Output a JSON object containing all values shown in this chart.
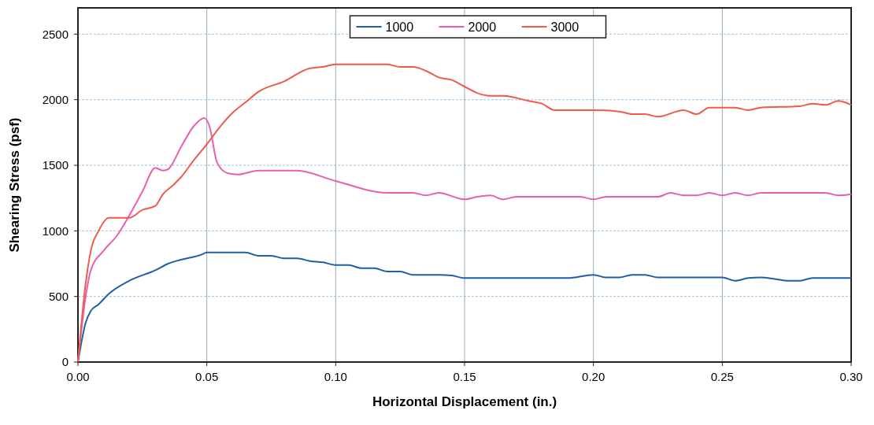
{
  "chart_data": {
    "type": "line",
    "xlabel": "Horizontal Displacement (in.)",
    "ylabel": "Shearing Stress (psf)",
    "xlim": [
      0,
      0.3
    ],
    "xticks": [
      {
        "value": 0,
        "label": "0.00"
      },
      {
        "value": 0.05,
        "label": "0.05"
      },
      {
        "value": 0.1,
        "label": "0.10"
      },
      {
        "value": 0.15,
        "label": "0.15"
      },
      {
        "value": 0.2,
        "label": "0.20"
      },
      {
        "value": 0.25,
        "label": "0.25"
      },
      {
        "value": 0.3,
        "label": "0.30"
      }
    ],
    "ylim": [
      0,
      2700
    ],
    "yticks": [
      0,
      500,
      1000,
      1500,
      2000,
      2500
    ],
    "grid": true,
    "legend": "top",
    "marker": "none",
    "line_style": "solid",
    "series": [
      {
        "name": "1000",
        "color": "#1f5fa8",
        "x": [
          0,
          0.003,
          0.005,
          0.008,
          0.012,
          0.02,
          0.03,
          0.035,
          0.04,
          0.048,
          0.05,
          0.06,
          0.065,
          0.07,
          0.075,
          0.08,
          0.085,
          0.09,
          0.095,
          0.1,
          0.105,
          0.11,
          0.115,
          0.12,
          0.125,
          0.13,
          0.14,
          0.145,
          0.15,
          0.19,
          0.2,
          0.205,
          0.21,
          0.215,
          0.22,
          0.225,
          0.25,
          0.255,
          0.26,
          0.265,
          0.27,
          0.275,
          0.28,
          0.285,
          0.3
        ],
        "values": [
          0,
          300,
          390,
          440,
          520,
          620,
          700,
          750,
          780,
          820,
          835,
          835,
          835,
          810,
          810,
          790,
          790,
          770,
          760,
          740,
          740,
          715,
          715,
          690,
          690,
          665,
          665,
          660,
          640,
          640,
          665,
          645,
          645,
          665,
          665,
          645,
          645,
          620,
          640,
          645,
          635,
          620,
          620,
          640,
          640
        ]
      },
      {
        "name": "2000",
        "color": "#e85fb0",
        "x": [
          0,
          0.003,
          0.005,
          0.01,
          0.015,
          0.02,
          0.025,
          0.03,
          0.033,
          0.035,
          0.04,
          0.045,
          0.049,
          0.051,
          0.054,
          0.058,
          0.062,
          0.07,
          0.08,
          0.085,
          0.1,
          0.12,
          0.13,
          0.135,
          0.14,
          0.15,
          0.155,
          0.16,
          0.165,
          0.17,
          0.195,
          0.2,
          0.205,
          0.225,
          0.23,
          0.235,
          0.24,
          0.245,
          0.25,
          0.255,
          0.26,
          0.265,
          0.29,
          0.295,
          0.3
        ],
        "values": [
          0,
          500,
          700,
          850,
          960,
          1120,
          1300,
          1480,
          1460,
          1470,
          1640,
          1800,
          1860,
          1800,
          1520,
          1440,
          1430,
          1460,
          1460,
          1460,
          1380,
          1290,
          1290,
          1270,
          1290,
          1240,
          1260,
          1270,
          1240,
          1260,
          1260,
          1240,
          1260,
          1260,
          1290,
          1270,
          1270,
          1290,
          1270,
          1290,
          1270,
          1290,
          1290,
          1270,
          1280
        ]
      },
      {
        "name": "3000",
        "color": "#f05a4a",
        "x": [
          0,
          0.003,
          0.005,
          0.008,
          0.012,
          0.02,
          0.025,
          0.03,
          0.033,
          0.037,
          0.04,
          0.045,
          0.05,
          0.055,
          0.06,
          0.065,
          0.07,
          0.08,
          0.09,
          0.095,
          0.1,
          0.12,
          0.125,
          0.13,
          0.135,
          0.14,
          0.145,
          0.15,
          0.155,
          0.16,
          0.165,
          0.175,
          0.18,
          0.185,
          0.2,
          0.21,
          0.215,
          0.22,
          0.225,
          0.235,
          0.24,
          0.245,
          0.255,
          0.26,
          0.265,
          0.28,
          0.285,
          0.29,
          0.295,
          0.3
        ],
        "values": [
          0,
          600,
          850,
          1000,
          1100,
          1100,
          1160,
          1190,
          1280,
          1350,
          1410,
          1540,
          1660,
          1790,
          1900,
          1980,
          2060,
          2140,
          2240,
          2250,
          2270,
          2270,
          2250,
          2250,
          2220,
          2170,
          2150,
          2100,
          2050,
          2030,
          2030,
          1990,
          1970,
          1920,
          1920,
          1910,
          1890,
          1890,
          1870,
          1920,
          1890,
          1940,
          1940,
          1920,
          1940,
          1950,
          1970,
          1960,
          1990,
          1960
        ]
      }
    ]
  }
}
